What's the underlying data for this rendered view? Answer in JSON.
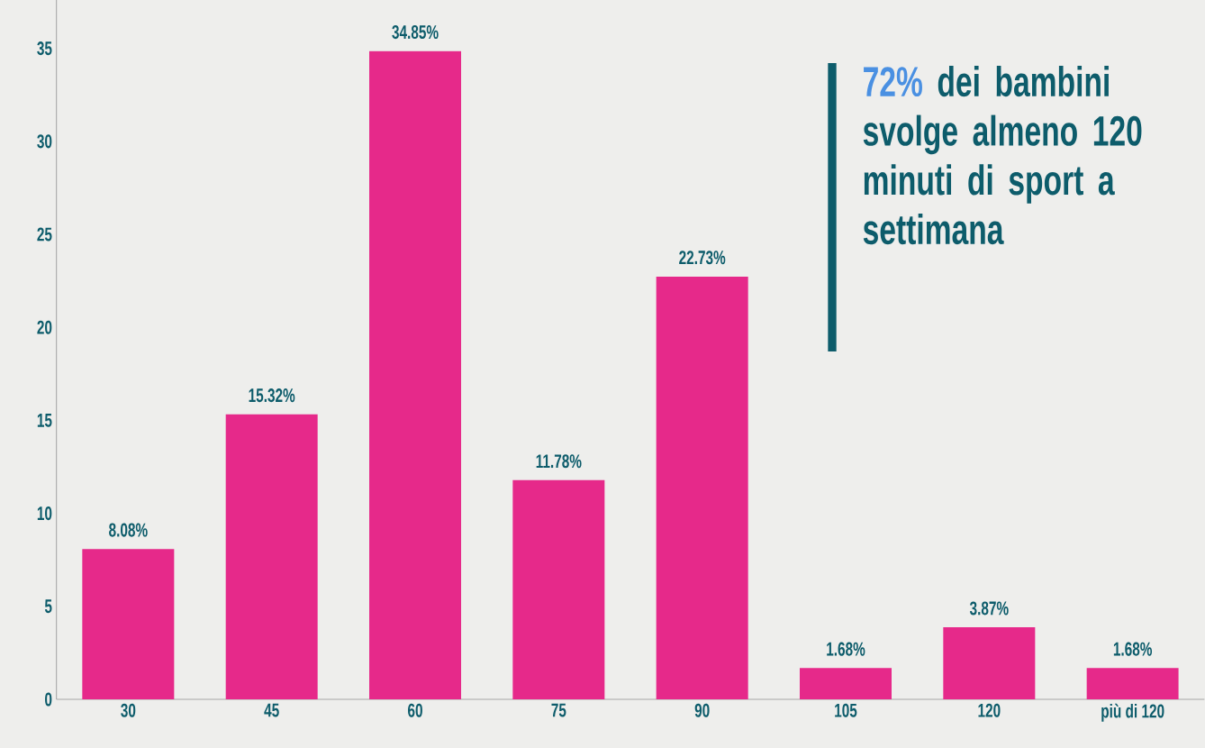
{
  "chart_data": {
    "type": "bar",
    "categories": [
      "30",
      "45",
      "60",
      "75",
      "90",
      "105",
      "120",
      "più di 120"
    ],
    "values": [
      8.08,
      15.32,
      34.85,
      11.78,
      22.73,
      1.68,
      3.87,
      1.68
    ],
    "value_labels": [
      "8.08%",
      "15.32%",
      "34.85%",
      "11.78%",
      "22.73%",
      "1.68%",
      "3.87%",
      "1.68%"
    ],
    "color": "#e6298a",
    "ylim": [
      0,
      37.6
    ],
    "yticks": [
      0,
      5,
      10,
      15,
      20,
      25,
      30,
      35
    ],
    "grid": false,
    "annotations": [
      "72%",
      "dei bambini svolge almeno 120 minuti di sport a settimana"
    ]
  }
}
